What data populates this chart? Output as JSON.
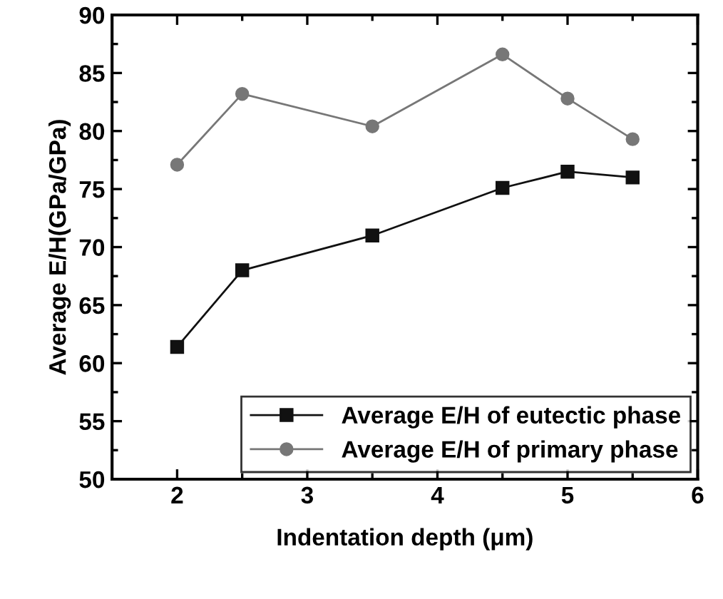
{
  "chart_data": {
    "type": "line",
    "xlabel": "Indentation depth (μm)",
    "ylabel": "Average E/H(GPa/GPa)",
    "xlim": [
      1.5,
      6
    ],
    "xticks": [
      2,
      3,
      4,
      5,
      6
    ],
    "ylim": [
      50,
      90
    ],
    "yticks": [
      50,
      55,
      60,
      65,
      70,
      75,
      80,
      85,
      90
    ],
    "legend": "bottom right",
    "grid": false,
    "line_style": "solid",
    "series": [
      {
        "name": "Average E/H of eutectic phase",
        "color": "#111111",
        "marker": "square",
        "x": [
          2,
          2.5,
          3.5,
          4.5,
          5,
          5.5
        ],
        "values": [
          61.4,
          68,
          71,
          75.1,
          76.5,
          76
        ]
      },
      {
        "name": "Average E/H of primary phase",
        "color": "#777777",
        "marker": "circle",
        "x": [
          2,
          2.5,
          3.5,
          4.5,
          5,
          5.5
        ],
        "values": [
          77.1,
          83.2,
          80.4,
          86.6,
          82.8,
          79.3
        ]
      }
    ]
  }
}
